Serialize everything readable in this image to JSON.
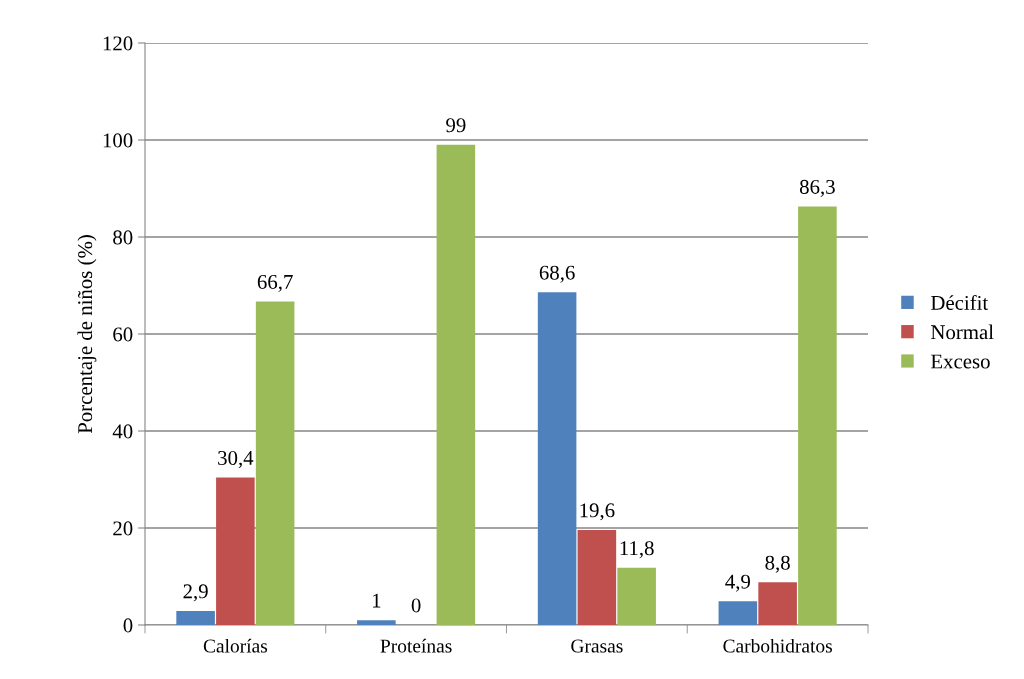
{
  "chart_data": {
    "type": "bar",
    "ylabel": "Porcentaje de niños (%)",
    "categories": [
      "Calorías",
      "Proteínas",
      "Grasas",
      "Carbohidratos"
    ],
    "series": [
      {
        "name": "Décifit",
        "color": "#4f81bd",
        "values": [
          2.9,
          1,
          68.6,
          4.9
        ],
        "value_labels": [
          "2,9",
          "1",
          "68,6",
          "4,9"
        ]
      },
      {
        "name": "Normal",
        "color": "#c0504d",
        "values": [
          30.4,
          0,
          19.6,
          8.8
        ],
        "value_labels": [
          "30,4",
          "0",
          "19,6",
          "8,8"
        ]
      },
      {
        "name": "Exceso",
        "color": "#9bbb59",
        "values": [
          66.7,
          99,
          11.8,
          86.3
        ],
        "value_labels": [
          "66,7",
          "99",
          "11,8",
          "86,3"
        ]
      }
    ],
    "ylim": [
      0,
      120
    ],
    "yticks": [
      0,
      20,
      40,
      60,
      80,
      100,
      120
    ],
    "grid": "y",
    "legend": "right"
  }
}
